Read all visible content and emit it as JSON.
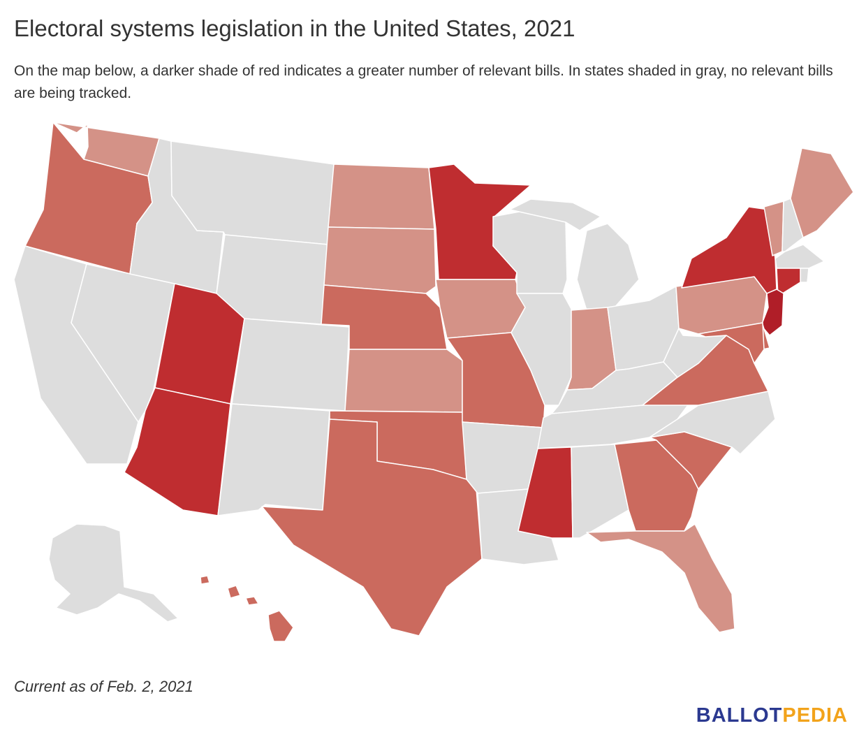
{
  "header": {
    "title": "Electoral systems legislation in the United States, 2021",
    "subtitle": "On the map below, a darker shade of red indicates a greater number of relevant bills. In states shaded in gray, no relevant bills are being tracked."
  },
  "footer": {
    "note": "Current as of Feb. 2, 2021",
    "logo_part1": "BALLOT",
    "logo_part2": "PEDIA"
  },
  "colors": {
    "none": "#dddddd",
    "level1": "#d49287",
    "level2": "#cb6a5e",
    "level3": "#bf2d30",
    "level4": "#b01e28",
    "logo_blue": "#2b3990",
    "logo_gold": "#f2a31b"
  },
  "states": {
    "WA": "level1",
    "OR": "level2",
    "CA": "none",
    "NV": "none",
    "ID": "none",
    "MT": "none",
    "WY": "none",
    "UT": "level3",
    "AZ": "level3",
    "CO": "none",
    "NM": "none",
    "ND": "level1",
    "SD": "level1",
    "NE": "level2",
    "KS": "level1",
    "OK": "level2",
    "TX": "level2",
    "MN": "level3",
    "IA": "level1",
    "MO": "level2",
    "AR": "none",
    "LA": "none",
    "WI": "none",
    "IL": "none",
    "MI": "none",
    "IN": "level1",
    "OH": "none",
    "KY": "none",
    "TN": "none",
    "MS": "level3",
    "AL": "none",
    "GA": "level2",
    "FL": "level1",
    "SC": "level2",
    "NC": "none",
    "VA": "level2",
    "WV": "none",
    "PA": "level1",
    "NY": "level3",
    "VT": "level1",
    "NH": "none",
    "ME": "level1",
    "MA": "none",
    "RI": "none",
    "CT": "level3",
    "NJ": "level4",
    "DE": "level2",
    "MD": "level2",
    "AK": "none",
    "HI": "level2"
  }
}
